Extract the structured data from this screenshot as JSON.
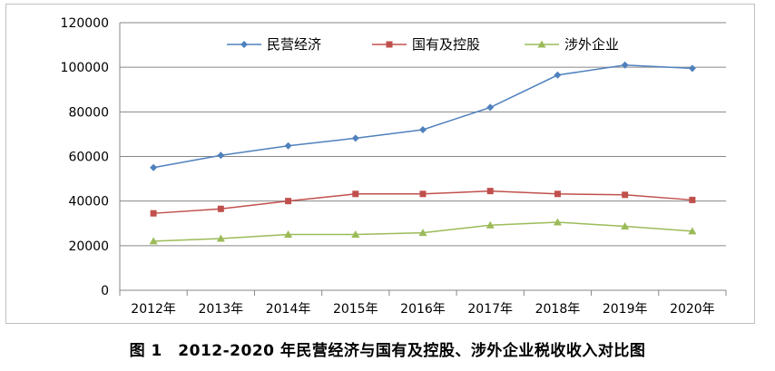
{
  "caption": "图 1　2012-2020 年民营经济与国有及控股、涉外企业税收收入对比图",
  "chart_data": {
    "type": "line",
    "title": "",
    "xlabel": "",
    "ylabel": "",
    "categories": [
      "2012年",
      "2013年",
      "2014年",
      "2015年",
      "2016年",
      "2017年",
      "2018年",
      "2019年",
      "2020年"
    ],
    "ylim": [
      0,
      120000
    ],
    "yticks": [
      0,
      20000,
      40000,
      60000,
      80000,
      100000,
      120000
    ],
    "grid": true,
    "legend_position": "top",
    "series": [
      {
        "name": "民营经济",
        "color": "#4f81bd",
        "marker": "diamond",
        "values": [
          55000,
          60500,
          64800,
          68200,
          72000,
          82000,
          96500,
          101000,
          99500
        ]
      },
      {
        "name": "国有及控股",
        "color": "#c0504d",
        "marker": "square",
        "values": [
          34500,
          36500,
          40000,
          43200,
          43200,
          44500,
          43200,
          42800,
          40500
        ]
      },
      {
        "name": "涉外企业",
        "color": "#9bbb59",
        "marker": "triangle",
        "values": [
          22000,
          23200,
          25000,
          25000,
          25800,
          29200,
          30500,
          28700,
          26500
        ]
      }
    ]
  }
}
